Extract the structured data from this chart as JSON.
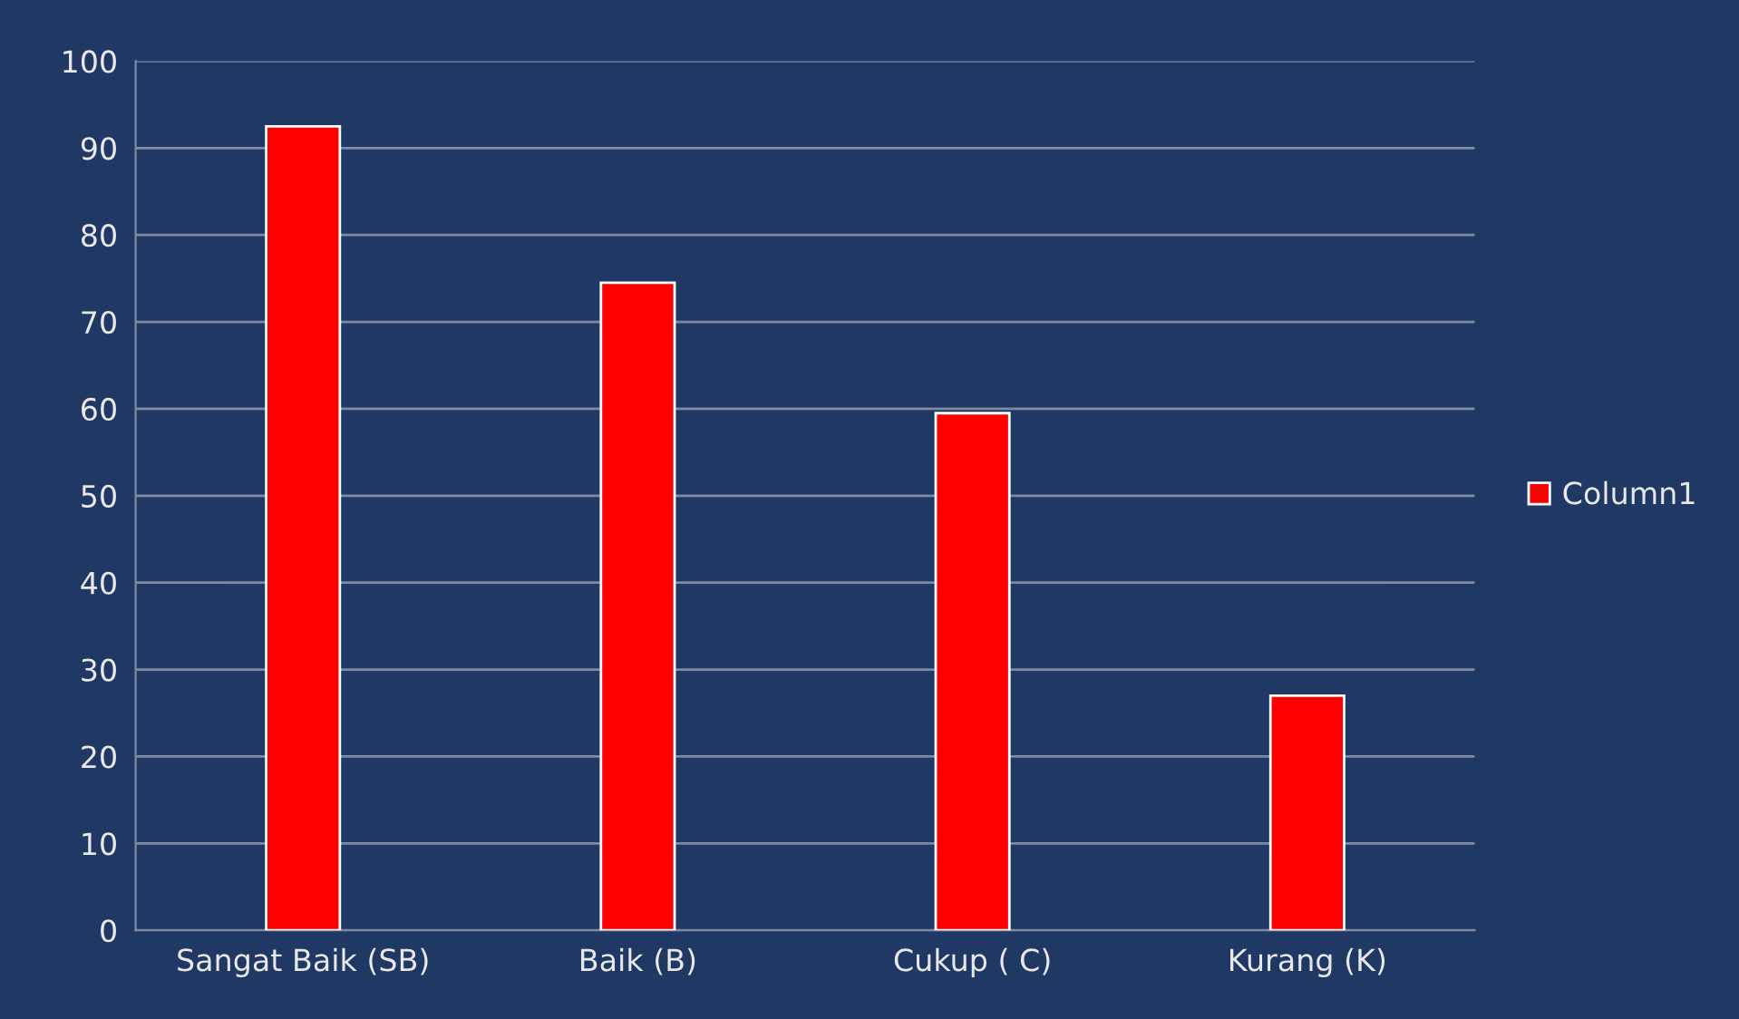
{
  "chart_data": {
    "type": "bar",
    "categories": [
      "Sangat Baik (SB)",
      "Baik (B)",
      "Cukup ( C)",
      "Kurang (K)"
    ],
    "series": [
      {
        "name": "Column1",
        "color": "#ff0000",
        "values": [
          92.5,
          74.5,
          59.5,
          27
        ]
      }
    ],
    "ylim": [
      0,
      100
    ],
    "yticks": [
      0,
      10,
      20,
      30,
      40,
      50,
      60,
      70,
      80,
      90,
      100
    ],
    "grid": "y",
    "legend": "right"
  }
}
